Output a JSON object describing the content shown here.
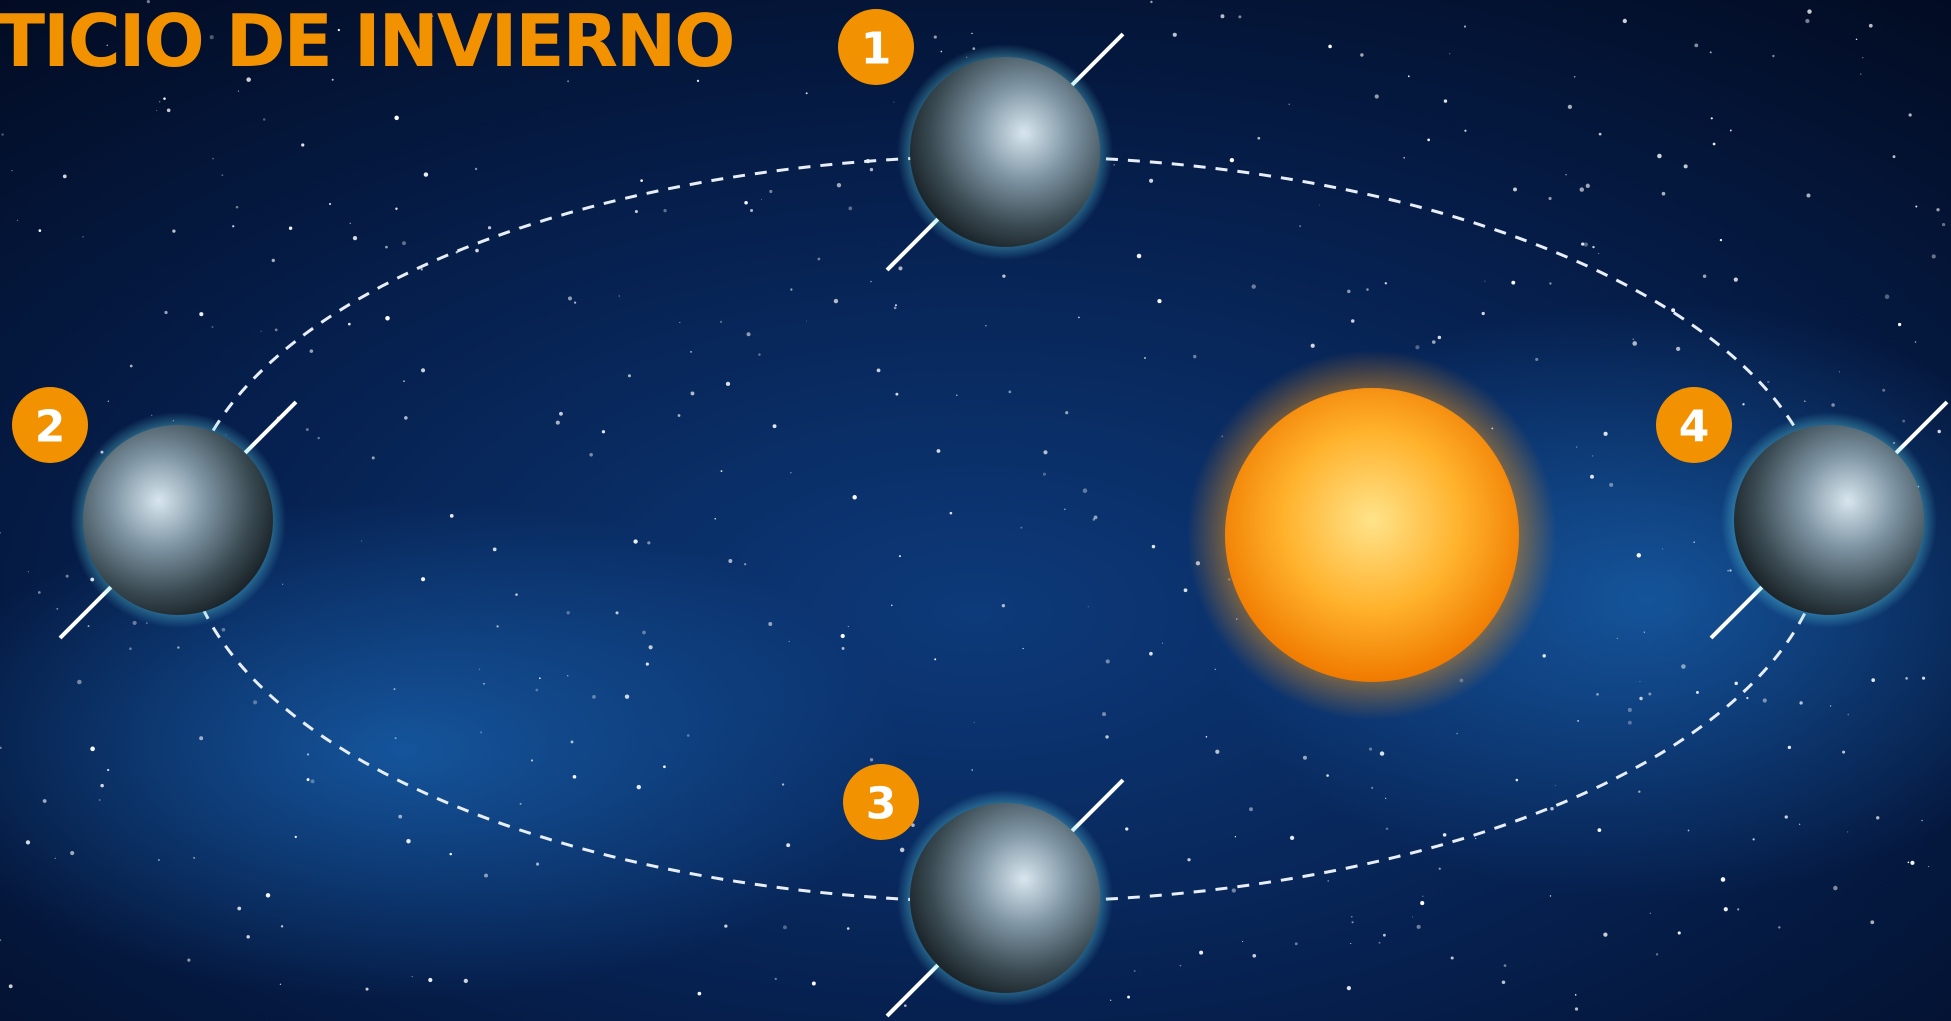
{
  "title": "TICIO DE INVIERNO",
  "positions": [
    {
      "label": "1"
    },
    {
      "label": "2"
    },
    {
      "label": "3"
    },
    {
      "label": "4"
    }
  ]
}
